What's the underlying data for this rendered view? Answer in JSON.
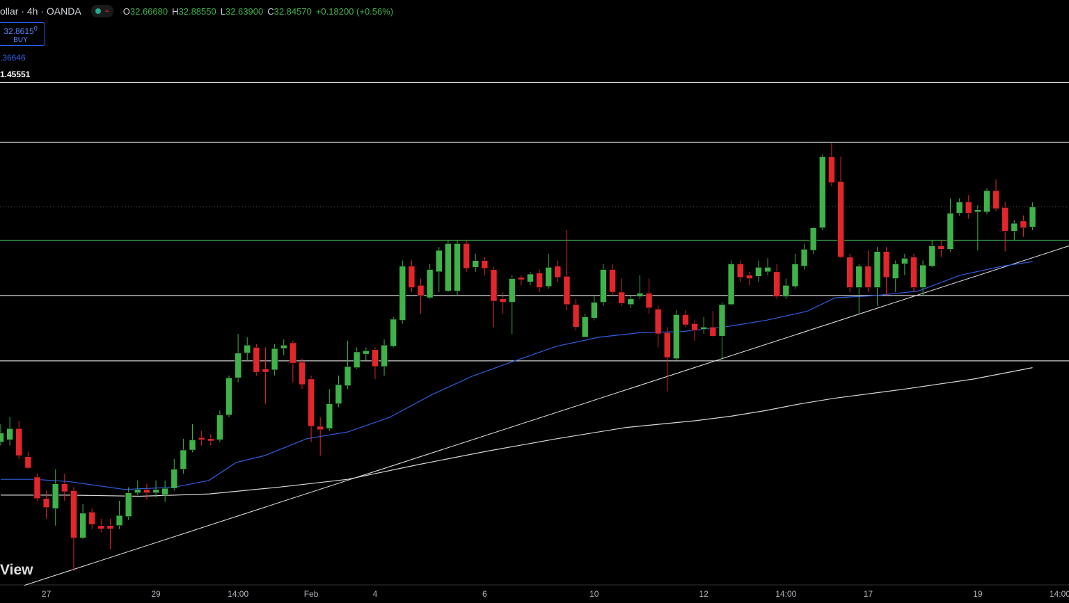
{
  "header": {
    "symbol": "ollar · 4h · OANDA",
    "ohlc": [
      {
        "label": "O",
        "value": "32.66680"
      },
      {
        "label": "H",
        "value": "32.88550"
      },
      {
        "label": "L",
        "value": "32.63900"
      },
      {
        "label": "C",
        "value": "32.84570"
      }
    ],
    "change": "+0.18200 (+0.56%)",
    "trade": {
      "price": "32.8615",
      "price_small": "0",
      "action": "BUY"
    },
    "indicators": [
      ".36646",
      "1.45551"
    ],
    "watermark": "View"
  },
  "chart_data": {
    "type": "candlestick",
    "categories": [
      null,
      null,
      null,
      null,
      null,
      "27",
      null,
      null,
      null,
      null,
      null,
      null,
      null,
      null,
      null,
      null,
      null,
      "29",
      null,
      null,
      null,
      null,
      null,
      null,
      null,
      null,
      "14:00",
      null,
      null,
      null,
      null,
      null,
      null,
      null,
      "Feb",
      null,
      null,
      null,
      null,
      null,
      null,
      "4",
      null,
      null,
      null,
      null,
      null,
      null,
      null,
      null,
      null,
      null,
      null,
      "6",
      null,
      null,
      null,
      null,
      null,
      null,
      null,
      null,
      null,
      null,
      null,
      "10",
      null,
      null,
      null,
      null,
      null,
      null,
      null,
      null,
      null,
      null,
      null,
      "12",
      null,
      null,
      null,
      null,
      null,
      null,
      null,
      null,
      "14:00",
      null,
      null,
      null,
      null,
      null,
      null,
      null,
      null,
      "17",
      null,
      null,
      null,
      null,
      null,
      null,
      null,
      null,
      null,
      null,
      null,
      "19",
      null,
      null,
      null,
      null,
      null,
      null,
      null,
      null,
      "14:00"
    ],
    "open": [
      30.76,
      30.78,
      30.88,
      30.63,
      30.45,
      30.26,
      30.17,
      30.39,
      30.33,
      29.91,
      30.14,
      30.02,
      30.02,
      30.02,
      30.1,
      30.31,
      30.34,
      30.31,
      30.29,
      30.35,
      30.52,
      30.69,
      30.8,
      30.79,
      30.78,
      31.0,
      31.33,
      31.55,
      31.6,
      31.41,
      31.4,
      31.59,
      31.64,
      31.47,
      31.32,
      30.9,
      30.88,
      31.1,
      31.26,
      31.42,
      31.54,
      31.58,
      31.43,
      31.61,
      31.84,
      32.32,
      32.15,
      32.04,
      32.27,
      32.1,
      32.1,
      32.52,
      32.31,
      32.37,
      32.29,
      32.03,
      32.0,
      32.22,
      32.18,
      32.26,
      32.14,
      32.32,
      32.23,
      31.98,
      31.69,
      31.86,
      32.0,
      32.29,
      32.09,
      31.98,
      32.05,
      32.08,
      31.94,
      31.73,
      31.5,
      31.89,
      31.81,
      31.76,
      31.78,
      31.7,
      31.98,
      32.34,
      32.24,
      32.23,
      32.27,
      32.27,
      32.05,
      32.14,
      32.32,
      32.46,
      32.66,
      33.29,
      33.07,
      32.4,
      32.13,
      32.32,
      32.13,
      32.45,
      32.21,
      32.34,
      32.4,
      32.13,
      32.32,
      32.5,
      32.47,
      32.79,
      32.89,
      32.8,
      32.8,
      32.99,
      32.84,
      32.63,
      32.72,
      32.6668,
      null,
      null,
      null
    ],
    "high": [
      30.92,
      30.98,
      30.95,
      30.67,
      30.48,
      30.33,
      30.52,
      30.48,
      30.36,
      30.21,
      30.17,
      30.08,
      30.08,
      30.24,
      30.36,
      30.42,
      30.39,
      30.42,
      30.42,
      30.61,
      30.79,
      30.92,
      30.86,
      30.83,
      31.04,
      31.35,
      31.72,
      31.69,
      31.63,
      31.6,
      31.63,
      31.67,
      31.66,
      31.5,
      31.35,
      30.98,
      31.23,
      31.35,
      31.66,
      31.6,
      31.6,
      31.6,
      31.67,
      31.87,
      32.37,
      32.37,
      32.21,
      32.34,
      32.49,
      32.55,
      32.55,
      32.55,
      32.43,
      32.4,
      32.31,
      32.09,
      32.24,
      32.24,
      32.27,
      32.29,
      32.43,
      32.37,
      32.64,
      32.03,
      31.9,
      32.06,
      32.34,
      32.34,
      32.21,
      32.06,
      32.24,
      32.21,
      31.97,
      31.78,
      31.93,
      31.93,
      31.84,
      31.87,
      31.92,
      32.0,
      32.37,
      32.37,
      32.27,
      32.37,
      32.39,
      32.34,
      32.21,
      32.43,
      32.52,
      32.67,
      33.31,
      33.41,
      33.29,
      32.43,
      32.34,
      32.46,
      32.49,
      32.49,
      32.37,
      32.43,
      32.43,
      32.37,
      32.55,
      32.55,
      32.92,
      32.92,
      32.95,
      32.86,
      33.01,
      33.09,
      32.89,
      32.73,
      32.77,
      32.8855,
      null,
      null,
      null
    ],
    "low": [
      30.73,
      30.73,
      30.61,
      30.52,
      30.24,
      30.08,
      30.02,
      30.24,
      29.62,
      29.9,
      29.99,
      29.96,
      29.81,
      29.99,
      30.07,
      30.29,
      30.25,
      30.27,
      30.23,
      30.33,
      30.48,
      30.67,
      30.73,
      30.73,
      30.76,
      30.98,
      31.29,
      31.48,
      31.35,
      31.1,
      31.35,
      31.53,
      31.29,
      31.23,
      30.76,
      30.64,
      30.86,
      31.07,
      31.23,
      31.41,
      31.48,
      31.32,
      31.35,
      31.6,
      31.81,
      32.09,
      31.9,
      32.03,
      32.09,
      32.09,
      32.06,
      32.27,
      32.27,
      32.24,
      31.78,
      31.9,
      31.72,
      32.15,
      32.15,
      32.09,
      32.12,
      32.18,
      31.93,
      31.75,
      31.69,
      31.84,
      31.97,
      32.06,
      31.97,
      31.95,
      32.03,
      31.9,
      31.6,
      31.21,
      31.47,
      31.78,
      31.66,
      31.72,
      31.69,
      31.5,
      31.97,
      32.18,
      32.15,
      32.18,
      32.24,
      32.03,
      32.03,
      32.12,
      32.29,
      32.43,
      32.64,
      33.03,
      32.39,
      32.09,
      31.89,
      32.09,
      31.97,
      32.06,
      32.09,
      32.24,
      32.09,
      32.06,
      32.31,
      32.4,
      32.45,
      32.77,
      32.74,
      32.46,
      32.78,
      32.81,
      32.45,
      32.55,
      32.58,
      32.639,
      null,
      null,
      null
    ],
    "close": [
      30.84,
      30.88,
      30.64,
      30.53,
      30.26,
      30.18,
      30.39,
      30.32,
      29.91,
      30.13,
      30.03,
      29.99,
      29.99,
      30.11,
      30.31,
      30.34,
      30.31,
      30.34,
      30.35,
      30.52,
      30.69,
      30.78,
      30.78,
      30.77,
      31.0,
      31.33,
      31.55,
      31.62,
      31.38,
      31.38,
      31.59,
      31.62,
      31.46,
      31.27,
      30.9,
      30.87,
      31.1,
      31.27,
      31.43,
      31.56,
      31.57,
      31.43,
      31.62,
      31.85,
      32.32,
      32.13,
      32.06,
      32.29,
      32.46,
      32.52,
      32.52,
      32.3,
      32.37,
      32.3,
      32.01,
      32.0,
      32.21,
      32.2,
      32.25,
      32.13,
      32.31,
      32.22,
      31.98,
      31.78,
      31.87,
      32.0,
      32.29,
      32.09,
      31.99,
      32.03,
      32.08,
      31.95,
      31.72,
      31.51,
      31.89,
      31.8,
      31.75,
      31.78,
      31.7,
      31.98,
      32.34,
      32.22,
      32.21,
      32.31,
      32.31,
      32.05,
      32.15,
      32.34,
      32.47,
      32.66,
      33.29,
      33.06,
      32.4,
      32.13,
      32.32,
      32.13,
      32.45,
      32.22,
      32.34,
      32.39,
      32.13,
      32.33,
      32.5,
      32.47,
      32.79,
      32.89,
      32.79,
      32.82,
      32.99,
      32.83,
      32.63,
      32.7,
      32.66,
      32.8457,
      null,
      null,
      null
    ],
    "up_color": "#3fb24a",
    "down_color": "#e3262b",
    "ylim": [
      29.5,
      34.68
    ],
    "moving_averages": [
      {
        "color": "#2f5fe0",
        "x": [
          0,
          3.7,
          7.5,
          13.6,
          19.0,
          22.8,
          25.8,
          28.9,
          33.5,
          38.0,
          42.6,
          47.2,
          51.8,
          56.3,
          60.9,
          65.5,
          70.0,
          74.6,
          79.2,
          83.8,
          88.3,
          91.4,
          96.0,
          100.5,
          105.1,
          109.7,
          113
        ],
        "values": [
          30.43,
          30.43,
          30.41,
          30.34,
          30.36,
          30.42,
          30.58,
          30.64,
          30.79,
          30.85,
          30.98,
          31.18,
          31.35,
          31.48,
          31.61,
          31.69,
          31.73,
          31.74,
          31.78,
          31.84,
          31.92,
          32.04,
          32.06,
          32.1,
          32.24,
          32.32,
          32.36
        ]
      },
      {
        "color": "#d8d8d8",
        "x": [
          0,
          7.5,
          15.2,
          22.8,
          30.4,
          38.0,
          45.7,
          53.3,
          60.9,
          68.5,
          76.1,
          80.0,
          83.8,
          87.6,
          91.4,
          99.0,
          106.6,
          113
        ],
        "values": [
          30.29,
          30.29,
          30.28,
          30.3,
          30.36,
          30.43,
          30.56,
          30.68,
          30.79,
          30.89,
          30.95,
          30.99,
          31.04,
          31.1,
          31.15,
          31.23,
          31.32,
          31.42
        ]
      }
    ],
    "trendline": {
      "color": "#e8e8e8",
      "x": [
        2.6,
        117
      ],
      "values": [
        29.49,
        32.5
      ]
    },
    "levels": [
      {
        "value": 33.95,
        "color": "#ffffff"
      },
      {
        "value": 33.42,
        "color": "#ffffff"
      },
      {
        "value": 32.8457,
        "color": "#6b6b6b",
        "style": "dotted"
      },
      {
        "value": 32.55,
        "color": "#3fb24a"
      },
      {
        "value": 32.06,
        "color": "#ffffff"
      },
      {
        "value": 31.48,
        "color": "#ffffff"
      }
    ]
  }
}
